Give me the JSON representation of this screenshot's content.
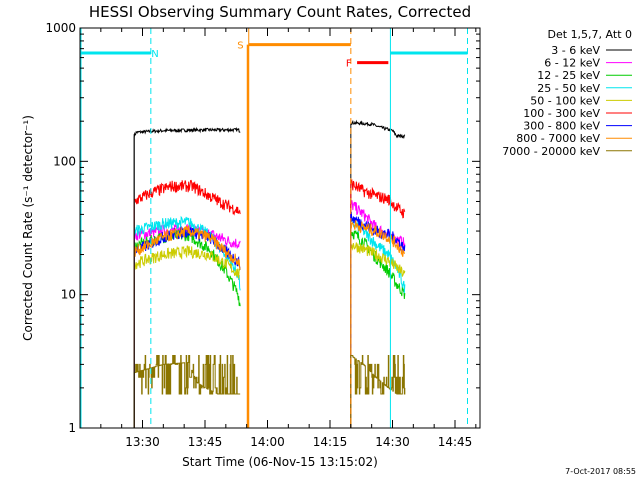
{
  "chart_data": {
    "type": "line",
    "title": "HESSI Observing Summary Count Rates, Corrected",
    "xlabel": "Start Time (06-Nov-15 13:15:02)",
    "ylabel": "Corrected Count Rate (s⁻¹ detector⁻¹)",
    "yscale": "log",
    "ylim": [
      1,
      1000
    ],
    "xlim_minutes": [
      0,
      96
    ],
    "x_ticks": [
      {
        "t": 15,
        "label": "13:30"
      },
      {
        "t": 30,
        "label": "13:45"
      },
      {
        "t": 45,
        "label": "14:00"
      },
      {
        "t": 60,
        "label": "14:15"
      },
      {
        "t": 75,
        "label": "14:30"
      },
      {
        "t": 90,
        "label": "14:45"
      }
    ],
    "y_ticks": [
      {
        "v": 1,
        "label": "1"
      },
      {
        "v": 10,
        "label": "10"
      },
      {
        "v": 100,
        "label": "100"
      },
      {
        "v": 1000,
        "label": "1000"
      }
    ],
    "legend_header": "Det 1,5,7, Att 0",
    "legend_position": "right, outside plot",
    "date_stamp": "7-Oct-2017 08:55",
    "segments": [
      [
        13,
        38.5
      ],
      [
        65,
        78
      ]
    ],
    "series": [
      {
        "name": "3 - 6 keV",
        "color": "#000000",
        "levels": [
          [
            13,
            155
          ],
          [
            13.5,
            165
          ],
          [
            20,
            170
          ],
          [
            30,
            172
          ],
          [
            38,
            172
          ],
          [
            38.5,
            168
          ]
        ],
        "levels2": [
          [
            65,
            195
          ],
          [
            70,
            190
          ],
          [
            72,
            180
          ],
          [
            75,
            170
          ],
          [
            76,
            155
          ],
          [
            78,
            155
          ],
          [
            78.3,
            115
          ]
        ]
      },
      {
        "name": "6 - 12 keV",
        "color": "#ff00ff",
        "levels": [
          [
            13,
            28
          ],
          [
            20,
            30
          ],
          [
            26,
            31
          ],
          [
            32,
            28
          ],
          [
            36,
            25
          ],
          [
            38.5,
            24
          ]
        ],
        "levels2": [
          [
            65,
            48
          ],
          [
            68,
            40
          ],
          [
            71,
            32
          ],
          [
            74,
            28
          ],
          [
            76,
            26
          ],
          [
            78,
            24
          ]
        ]
      },
      {
        "name": "12 - 25 keV",
        "color": "#00cc00",
        "levels": [
          [
            13,
            23
          ],
          [
            20,
            27
          ],
          [
            26,
            28
          ],
          [
            31,
            22
          ],
          [
            35,
            15
          ],
          [
            38,
            10
          ],
          [
            38.5,
            8
          ]
        ],
        "levels2": [
          [
            65,
            30
          ],
          [
            68,
            25
          ],
          [
            71,
            19
          ],
          [
            74,
            15
          ],
          [
            76,
            12
          ],
          [
            78,
            10
          ]
        ]
      },
      {
        "name": "25 - 50 keV",
        "color": "#00e5ee",
        "levels": [
          [
            13,
            30
          ],
          [
            20,
            34
          ],
          [
            26,
            35
          ],
          [
            31,
            28
          ],
          [
            35,
            20
          ],
          [
            38,
            14
          ],
          [
            38.5,
            11
          ]
        ],
        "levels2": [
          [
            65,
            35
          ],
          [
            68,
            30
          ],
          [
            71,
            24
          ],
          [
            74,
            20
          ],
          [
            76,
            16
          ],
          [
            78,
            11
          ]
        ]
      },
      {
        "name": "50 - 100 keV",
        "color": "#cccc00",
        "levels": [
          [
            13,
            17
          ],
          [
            20,
            20
          ],
          [
            26,
            21
          ],
          [
            31,
            20
          ],
          [
            35,
            17
          ],
          [
            38.5,
            14
          ]
        ],
        "levels2": [
          [
            65,
            24
          ],
          [
            68,
            22
          ],
          [
            71,
            20
          ],
          [
            74,
            18
          ],
          [
            76,
            16
          ],
          [
            78,
            14
          ]
        ]
      },
      {
        "name": "100 - 300 keV",
        "color": "#ff0000",
        "levels": [
          [
            13,
            50
          ],
          [
            17,
            58
          ],
          [
            22,
            65
          ],
          [
            27,
            65
          ],
          [
            31,
            55
          ],
          [
            35,
            47
          ],
          [
            38.5,
            42
          ]
        ],
        "levels2": [
          [
            65,
            68
          ],
          [
            68,
            60
          ],
          [
            71,
            55
          ],
          [
            74,
            52
          ],
          [
            76,
            45
          ],
          [
            78,
            40
          ]
        ]
      },
      {
        "name": "300 - 800 keV",
        "color": "#0000ff",
        "levels": [
          [
            13,
            21
          ],
          [
            20,
            27
          ],
          [
            26,
            30
          ],
          [
            31,
            27
          ],
          [
            35,
            21
          ],
          [
            38.5,
            17
          ]
        ],
        "levels2": [
          [
            65,
            38
          ],
          [
            68,
            34
          ],
          [
            71,
            30
          ],
          [
            74,
            28
          ],
          [
            76,
            26
          ],
          [
            78,
            22
          ]
        ]
      },
      {
        "name": "800 - 7000 keV",
        "color": "#ff8c00",
        "levels": [
          [
            13,
            21
          ],
          [
            20,
            27
          ],
          [
            26,
            30
          ],
          [
            31,
            27
          ],
          [
            35,
            21
          ],
          [
            38.5,
            17
          ]
        ],
        "levels2": [
          [
            65,
            34
          ],
          [
            68,
            32
          ],
          [
            71,
            30
          ],
          [
            74,
            27
          ],
          [
            76,
            24
          ],
          [
            78,
            20
          ]
        ]
      },
      {
        "name": "7000 - 20000 keV",
        "color": "#8b7500",
        "levels": [
          [
            13,
            2.6
          ],
          [
            20,
            3.0
          ],
          [
            26,
            3.1
          ],
          [
            28,
            2.2
          ],
          [
            30,
            2.0
          ],
          [
            33,
            1.8
          ],
          [
            38.5,
            1.8
          ]
        ],
        "levels2": [
          [
            65,
            3.5
          ],
          [
            68,
            3.0
          ],
          [
            71,
            2.4
          ],
          [
            74,
            2.0
          ],
          [
            76,
            1.8
          ],
          [
            78,
            1.8
          ]
        ]
      }
    ],
    "flags": [
      {
        "label": "N",
        "color": "#00e5ee",
        "line_level": 650,
        "spans": [
          [
            0,
            17
          ]
        ],
        "markers": [
          17
        ],
        "label_at": 18
      },
      {
        "label": "S",
        "color": "#ff8c00",
        "line_level": 750,
        "spans": [
          [
            40.5,
            65
          ]
        ],
        "markers": [
          40.5,
          65
        ],
        "label_at": 38.5
      },
      {
        "label": "F",
        "color": "#ff0000",
        "line_level": 550,
        "spans": [
          [
            66.5,
            74
          ]
        ],
        "markers": [],
        "label_at": 64.5
      },
      {
        "label": "",
        "color": "#00e5ee",
        "line_level": 650,
        "spans": [
          [
            74.5,
            93
          ]
        ],
        "markers": [
          74.5,
          93
        ],
        "label_at": null
      }
    ]
  }
}
